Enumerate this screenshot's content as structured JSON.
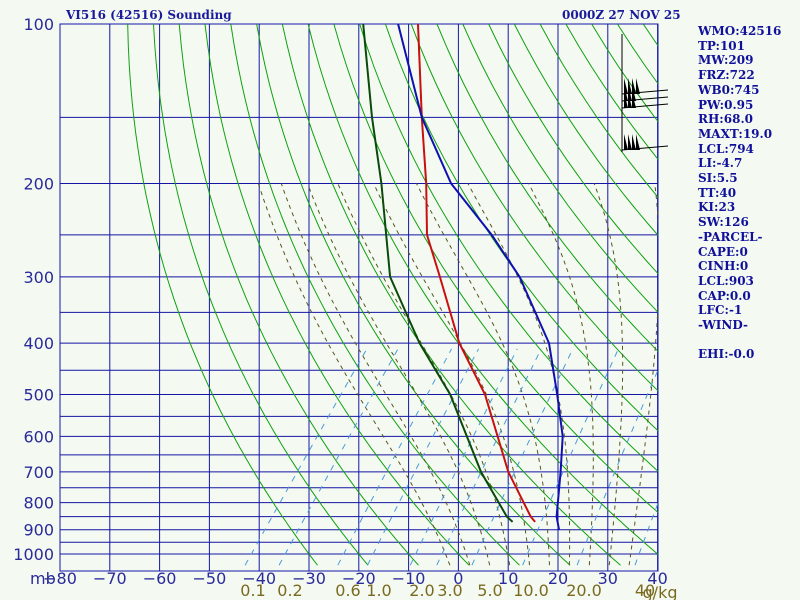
{
  "header": {
    "title_left": "VI516 (42516) Sounding",
    "title_right": "0000Z 27 NOV 25"
  },
  "indices": [
    "WMO:42516",
    "TP:101",
    "MW:209",
    "FRZ:722",
    "WB0:745",
    "PW:0.95",
    "RH:68.0",
    "MAXT:19.0",
    "LCL:794",
    "LI:-4.7",
    "SI:5.5",
    "TT:40",
    "KI:23",
    "SW:126",
    "-PARCEL-",
    "CAPE:0",
    "CINH:0",
    "LCL:903",
    "CAP:0.0",
    "LFC:-1",
    "-WIND-",
    "",
    "EHI:-0.0"
  ],
  "colors": {
    "grid": "#1515A5",
    "dry_adiabat": "#10A010",
    "moist_adiabat": "#555520",
    "mixing_ratio": "#4A9ADA",
    "temperature": "#C81010",
    "dewpoint": "#0A4A0A",
    "parcel": "#1010B0",
    "wind_barb": "#000000"
  },
  "chart_data": {
    "type": "line",
    "title": "VI516 (42516) Sounding",
    "xlabel": "",
    "ylabel": "mb",
    "xlim": [
      -80,
      40
    ],
    "ylim": [
      1000,
      100
    ],
    "y_scale": "log",
    "grid": true,
    "pressure_ticks": [
      100,
      200,
      300,
      400,
      500,
      600,
      700,
      800,
      900,
      1000
    ],
    "temp_ticks": [
      -80,
      -70,
      -60,
      -50,
      -40,
      -30,
      -20,
      -10,
      0,
      10,
      20,
      30,
      40
    ],
    "pressure_ticks_label": "mb",
    "mixing_ratio_ticks": [
      "0.1",
      "0.2",
      "0.6",
      "1.0",
      "2.0",
      "3.0",
      "5.0",
      "10.0",
      "20.0",
      "40"
    ],
    "mixing_ratio_unit": "g/kg",
    "series": [
      {
        "values": [
          [
            870,
            10.5
          ],
          [
            850,
            8.8
          ],
          [
            700,
            -2.5
          ],
          [
            500,
            -19
          ],
          [
            400,
            -32
          ],
          [
            300,
            -46
          ],
          [
            250,
            -55
          ],
          [
            200,
            -63
          ],
          [
            150,
            -74
          ],
          [
            100,
            -89
          ]
        ]
      },
      {
        "values": [
          [
            870,
            6.0
          ],
          [
            850,
            4.0
          ],
          [
            700,
            -8.0
          ],
          [
            500,
            -26
          ],
          [
            400,
            -40
          ],
          [
            300,
            -56
          ],
          [
            200,
            -72
          ],
          [
            150,
            -84
          ],
          [
            100,
            -100
          ]
        ]
      },
      {
        "values": [
          [
            900,
            16.5
          ],
          [
            850,
            14.0
          ],
          [
            700,
            8.0
          ],
          [
            600,
            3.0
          ],
          [
            500,
            -4.5
          ],
          [
            400,
            -14
          ],
          [
            300,
            -30
          ],
          [
            250,
            -42
          ],
          [
            200,
            -58
          ],
          [
            150,
            -74
          ],
          [
            100,
            -93
          ]
        ]
      }
    ]
  }
}
